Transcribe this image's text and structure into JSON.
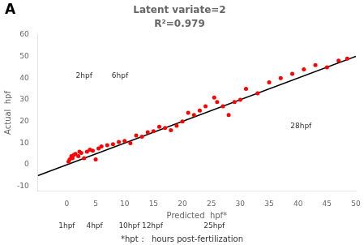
{
  "chart_data": {
    "type": "scatter",
    "panel_label": "A",
    "title": "Latent variate=2",
    "subtitle": "R²=0.979",
    "x_label": "Predicted  hpf*",
    "y_label": "Actual  hpf",
    "footnote": "*hpt：  hours post-fertilization",
    "xlim": [
      -5,
      50
    ],
    "ylim": [
      -12,
      60
    ],
    "xticks": [
      0,
      5,
      10,
      15,
      20,
      25,
      30,
      35,
      40,
      45,
      50
    ],
    "yticks": [
      -10,
      0,
      10,
      20,
      30,
      40,
      50,
      60
    ],
    "grid": false,
    "series": [
      {
        "type": "scatter",
        "color": "#FF0000",
        "x": [
          0.3,
          0.5,
          0.8,
          1.0,
          1.2,
          1.5,
          2.0,
          2.2,
          2.5,
          3.0,
          3.5,
          4.0,
          4.5,
          5.0,
          5.5,
          6.0,
          7.0,
          8.0,
          9.0,
          10.0,
          11.0,
          12.0,
          13.0,
          14.0,
          15.0,
          16.0,
          17.0,
          18.0,
          19.0,
          20.0,
          21.0,
          22.0,
          23.0,
          24.0,
          25.5,
          26.0,
          27.0,
          28.0,
          29.0,
          30.0,
          31.0,
          33.0,
          35.0,
          37.0,
          39.0,
          41.0,
          43.0,
          45.0,
          47.0,
          48.5
        ],
        "values": [
          1.5,
          2.5,
          4.0,
          3.0,
          4.5,
          5.0,
          4.0,
          6.0,
          5.5,
          3.0,
          6.0,
          7.0,
          6.5,
          2.5,
          7.5,
          8.5,
          9.0,
          9.5,
          10.5,
          11.0,
          10.0,
          13.5,
          13.0,
          15.0,
          15.5,
          17.5,
          17.0,
          16.0,
          18.0,
          20.0,
          24.0,
          23.0,
          25.0,
          27.0,
          31.0,
          29.0,
          27.0,
          23.0,
          29.0,
          30.0,
          35.0,
          33.0,
          38.0,
          40.0,
          42.0,
          44.0,
          46.0,
          45.0,
          48.0,
          49.0
        ]
      },
      {
        "type": "line",
        "color": "#000000",
        "x": [
          -5,
          50
        ],
        "values": [
          -5,
          50
        ]
      }
    ],
    "annotations": [
      {
        "text": "2hpf",
        "x": 3.0,
        "y": 42.5
      },
      {
        "text": "6hpf",
        "x": 9.2,
        "y": 42.5
      },
      {
        "text": "28hpf",
        "x": 40.5,
        "y": 19.5
      },
      {
        "text": "1hpf",
        "x": 0.0
      },
      {
        "text": "4hpf",
        "x": 4.8
      },
      {
        "text": "10hpf",
        "x": 10.8
      },
      {
        "text": "12hpf",
        "x": 14.8
      },
      {
        "text": "25hpf",
        "x": 25.5
      }
    ]
  }
}
